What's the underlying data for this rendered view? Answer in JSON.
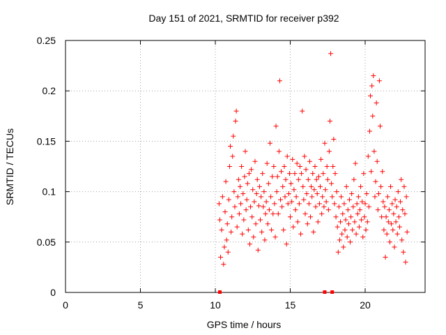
{
  "chart_data": {
    "type": "scatter",
    "title": "Day 151 of 2021, SRMTID for receiver p392",
    "xlabel": "GPS time / hours",
    "ylabel": "SRMTID / TECUs",
    "xlim": [
      0,
      24
    ],
    "ylim": [
      0,
      0.25
    ],
    "x_ticks": [
      0,
      5,
      10,
      15,
      20
    ],
    "x_tick_labels": [
      "0",
      "5",
      "10",
      "15",
      "20"
    ],
    "y_ticks": [
      0,
      0.05,
      0.1,
      0.15,
      0.2,
      0.25
    ],
    "y_tick_labels": [
      "0",
      "0.05",
      "0.1",
      "0.15",
      "0.2",
      "0.25"
    ],
    "grid": true,
    "marker": "+",
    "color": "#ff0000",
    "series": [
      {
        "name": "SRMTID",
        "points": [
          [
            10.25,
            0.088
          ],
          [
            10.3,
            0.072
          ],
          [
            10.35,
            0.035
          ],
          [
            10.42,
            0.062
          ],
          [
            10.48,
            0.095
          ],
          [
            10.55,
            0.028
          ],
          [
            10.6,
            0.045
          ],
          [
            10.65,
            0.08
          ],
          [
            10.7,
            0.11
          ],
          [
            10.75,
            0.052
          ],
          [
            10.8,
            0.068
          ],
          [
            10.85,
            0.04
          ],
          [
            10.9,
            0.092
          ],
          [
            10.95,
            0.125
          ],
          [
            11.0,
            0.145
          ],
          [
            11.05,
            0.06
          ],
          [
            11.1,
            0.075
          ],
          [
            11.15,
            0.135
          ],
          [
            11.2,
            0.155
          ],
          [
            11.25,
            0.1
          ],
          [
            11.3,
            0.085
          ],
          [
            11.35,
            0.17
          ],
          [
            11.4,
            0.18
          ],
          [
            11.45,
            0.065
          ],
          [
            11.5,
            0.095
          ],
          [
            11.55,
            0.112
          ],
          [
            11.6,
            0.078
          ],
          [
            11.65,
            0.105
          ],
          [
            11.7,
            0.088
          ],
          [
            11.75,
            0.125
          ],
          [
            11.8,
            0.058
          ],
          [
            11.85,
            0.098
          ],
          [
            11.9,
            0.072
          ],
          [
            11.95,
            0.115
          ],
          [
            12.0,
            0.14
          ],
          [
            12.05,
            0.082
          ],
          [
            12.1,
            0.092
          ],
          [
            12.15,
            0.108
          ],
          [
            12.2,
            0.062
          ],
          [
            12.25,
            0.118
          ],
          [
            12.3,
            0.048
          ],
          [
            12.35,
            0.085
          ],
          [
            12.4,
            0.122
          ],
          [
            12.45,
            0.075
          ],
          [
            12.5,
            0.102
          ],
          [
            12.55,
            0.055
          ],
          [
            12.6,
            0.09
          ],
          [
            12.65,
            0.13
          ],
          [
            12.7,
            0.068
          ],
          [
            12.75,
            0.098
          ],
          [
            12.8,
            0.112
          ],
          [
            12.85,
            0.042
          ],
          [
            12.9,
            0.086
          ],
          [
            12.95,
            0.105
          ],
          [
            13.0,
            0.072
          ],
          [
            13.05,
            0.095
          ],
          [
            13.1,
            0.06
          ],
          [
            13.15,
            0.118
          ],
          [
            13.2,
            0.085
          ],
          [
            13.25,
            0.1
          ],
          [
            13.3,
            0.052
          ],
          [
            13.35,
            0.078
          ],
          [
            13.4,
            0.09
          ],
          [
            13.45,
            0.128
          ],
          [
            13.5,
            0.068
          ],
          [
            13.55,
            0.108
          ],
          [
            13.6,
            0.082
          ],
          [
            13.65,
            0.148
          ],
          [
            13.7,
            0.095
          ],
          [
            13.75,
            0.062
          ],
          [
            13.8,
            0.115
          ],
          [
            13.85,
            0.078
          ],
          [
            13.9,
            0.125
          ],
          [
            13.95,
            0.088
          ],
          [
            14.0,
            0.055
          ],
          [
            14.05,
            0.165
          ],
          [
            14.1,
            0.1
          ],
          [
            14.15,
            0.115
          ],
          [
            14.2,
            0.078
          ],
          [
            14.25,
            0.14
          ],
          [
            14.3,
            0.21
          ],
          [
            14.35,
            0.092
          ],
          [
            14.4,
            0.12
          ],
          [
            14.45,
            0.085
          ],
          [
            14.5,
            0.105
          ],
          [
            14.55,
            0.062
          ],
          [
            14.6,
            0.125
          ],
          [
            14.65,
            0.095
          ],
          [
            14.7,
            0.112
          ],
          [
            14.75,
            0.048
          ],
          [
            14.8,
            0.135
          ],
          [
            14.85,
            0.088
          ],
          [
            14.9,
            0.098
          ],
          [
            14.95,
            0.118
          ],
          [
            15.0,
            0.075
          ],
          [
            15.05,
            0.108
          ],
          [
            15.1,
            0.09
          ],
          [
            15.15,
            0.132
          ],
          [
            15.2,
            0.065
          ],
          [
            15.25,
            0.102
          ],
          [
            15.3,
            0.118
          ],
          [
            15.35,
            0.082
          ],
          [
            15.4,
            0.095
          ],
          [
            15.45,
            0.128
          ],
          [
            15.5,
            0.07
          ],
          [
            15.55,
            0.112
          ],
          [
            15.6,
            0.088
          ],
          [
            15.65,
            0.125
          ],
          [
            15.7,
            0.058
          ],
          [
            15.75,
            0.118
          ],
          [
            15.8,
            0.18
          ],
          [
            15.85,
            0.105
          ],
          [
            15.9,
            0.092
          ],
          [
            15.95,
            0.135
          ],
          [
            16.0,
            0.078
          ],
          [
            16.05,
            0.122
          ],
          [
            16.1,
            0.098
          ],
          [
            16.15,
            0.068
          ],
          [
            16.2,
            0.112
          ],
          [
            16.25,
            0.088
          ],
          [
            16.3,
            0.13
          ],
          [
            16.35,
            0.075
          ],
          [
            16.4,
            0.105
          ],
          [
            16.45,
            0.095
          ],
          [
            16.5,
            0.118
          ],
          [
            16.55,
            0.06
          ],
          [
            16.6,
            0.102
          ],
          [
            16.65,
            0.125
          ],
          [
            16.7,
            0.085
          ],
          [
            16.75,
            0.112
          ],
          [
            16.8,
            0.098
          ],
          [
            16.85,
            0.07
          ],
          [
            16.9,
            0.115
          ],
          [
            16.95,
            0.088
          ],
          [
            17.0,
            0.105
          ],
          [
            17.05,
            0.132
          ],
          [
            17.1,
            0.078
          ],
          [
            17.15,
            0.095
          ],
          [
            17.2,
            0.118
          ],
          [
            17.25,
            0.085
          ],
          [
            17.3,
            0.148
          ],
          [
            17.35,
            0.102
          ],
          [
            17.4,
            0.09
          ],
          [
            17.45,
            0.125
          ],
          [
            17.5,
            0.112
          ],
          [
            17.55,
            0.082
          ],
          [
            17.6,
            0.14
          ],
          [
            17.65,
            0.17
          ],
          [
            17.7,
            0.237
          ],
          [
            17.75,
            0.108
          ],
          [
            17.8,
            0.095
          ],
          [
            17.85,
            0.125
          ],
          [
            17.9,
            0.152
          ],
          [
            17.95,
            0.088
          ],
          [
            18.0,
            0.118
          ],
          [
            18.05,
            0.075
          ],
          [
            18.1,
            0.1
          ],
          [
            18.15,
            0.065
          ],
          [
            18.2,
            0.04
          ],
          [
            18.25,
            0.085
          ],
          [
            18.3,
            0.052
          ],
          [
            18.35,
            0.07
          ],
          [
            18.4,
            0.095
          ],
          [
            18.45,
            0.058
          ],
          [
            18.5,
            0.078
          ],
          [
            18.55,
            0.045
          ],
          [
            18.6,
            0.088
          ],
          [
            18.65,
            0.062
          ],
          [
            18.7,
            0.072
          ],
          [
            18.75,
            0.105
          ],
          [
            18.8,
            0.055
          ],
          [
            18.85,
            0.082
          ],
          [
            18.9,
            0.068
          ],
          [
            18.95,
            0.092
          ],
          [
            19.0,
            0.05
          ],
          [
            19.05,
            0.075
          ],
          [
            19.1,
            0.098
          ],
          [
            19.15,
            0.062
          ],
          [
            19.2,
            0.085
          ],
          [
            19.25,
            0.112
          ],
          [
            19.3,
            0.07
          ],
          [
            19.35,
            0.128
          ],
          [
            19.4,
            0.058
          ],
          [
            19.45,
            0.088
          ],
          [
            19.5,
            0.078
          ],
          [
            19.55,
            0.095
          ],
          [
            19.6,
            0.065
          ],
          [
            19.65,
            0.082
          ],
          [
            19.7,
            0.105
          ],
          [
            19.75,
            0.072
          ],
          [
            19.8,
            0.09
          ],
          [
            19.85,
            0.055
          ],
          [
            19.9,
            0.118
          ],
          [
            19.95,
            0.075
          ],
          [
            20.0,
            0.088
          ],
          [
            20.05,
            0.062
          ],
          [
            20.1,
            0.098
          ],
          [
            20.15,
            0.07
          ],
          [
            20.2,
            0.135
          ],
          [
            20.25,
            0.085
          ],
          [
            20.3,
            0.16
          ],
          [
            20.35,
            0.195
          ],
          [
            20.4,
            0.12
          ],
          [
            20.45,
            0.205
          ],
          [
            20.5,
            0.175
          ],
          [
            20.55,
            0.215
          ],
          [
            20.6,
            0.14
          ],
          [
            20.65,
            0.095
          ],
          [
            20.7,
            0.11
          ],
          [
            20.75,
            0.188
          ],
          [
            20.8,
            0.13
          ],
          [
            20.85,
            0.082
          ],
          [
            20.9,
            0.098
          ],
          [
            20.95,
            0.21
          ],
          [
            21.0,
            0.165
          ],
          [
            21.05,
            0.105
          ],
          [
            21.1,
            0.075
          ],
          [
            21.15,
            0.12
          ],
          [
            21.2,
            0.09
          ],
          [
            21.25,
            0.062
          ],
          [
            21.3,
            0.085
          ],
          [
            21.35,
            0.035
          ],
          [
            21.4,
            0.075
          ],
          [
            21.45,
            0.058
          ],
          [
            21.5,
            0.095
          ],
          [
            21.55,
            0.07
          ],
          [
            21.6,
            0.082
          ],
          [
            21.65,
            0.05
          ],
          [
            21.7,
            0.105
          ],
          [
            21.75,
            0.068
          ],
          [
            21.8,
            0.088
          ],
          [
            21.85,
            0.062
          ],
          [
            21.9,
            0.078
          ],
          [
            21.95,
            0.045
          ],
          [
            22.0,
            0.092
          ],
          [
            22.05,
            0.07
          ],
          [
            22.1,
            0.085
          ],
          [
            22.15,
            0.058
          ],
          [
            22.2,
            0.1
          ],
          [
            22.25,
            0.075
          ],
          [
            22.3,
            0.065
          ],
          [
            22.35,
            0.09
          ],
          [
            22.4,
            0.112
          ],
          [
            22.45,
            0.052
          ],
          [
            22.5,
            0.082
          ],
          [
            22.55,
            0.04
          ],
          [
            22.6,
            0.105
          ],
          [
            22.65,
            0.078
          ],
          [
            22.7,
            0.03
          ],
          [
            22.75,
            0.095
          ],
          [
            22.8,
            0.06
          ]
        ]
      }
    ],
    "axis_marks_x": [
      10.3,
      17.3,
      17.8
    ]
  }
}
